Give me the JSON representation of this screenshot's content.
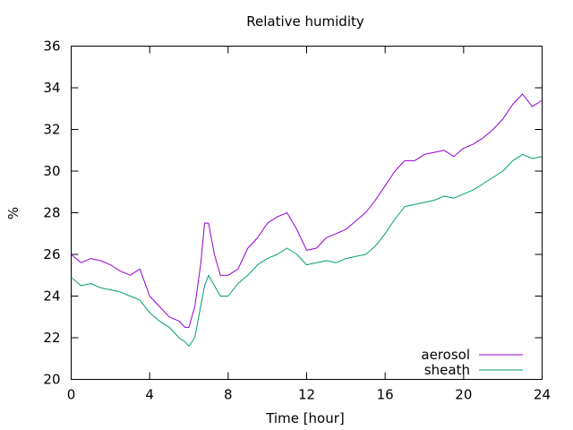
{
  "chart_data": {
    "type": "line",
    "title": "Relative humidity",
    "xlabel": "Time [hour]",
    "ylabel": "%",
    "xlim": [
      0,
      24
    ],
    "ylim": [
      20,
      36
    ],
    "xticks": [
      0,
      4,
      8,
      12,
      16,
      20,
      24
    ],
    "yticks": [
      20,
      22,
      24,
      26,
      28,
      30,
      32,
      34,
      36
    ],
    "grid": false,
    "legend_position": "bottom-right",
    "series": [
      {
        "name": "aerosol",
        "color": "#9400d3",
        "x": [
          0,
          0.5,
          1,
          1.5,
          2,
          2.5,
          3,
          3.5,
          4,
          4.5,
          5,
          5.5,
          5.8,
          6,
          6.3,
          6.6,
          6.8,
          7,
          7.3,
          7.6,
          8,
          8.5,
          9,
          9.5,
          10,
          10.5,
          11,
          11.5,
          12,
          12.5,
          13,
          13.5,
          14,
          14.5,
          15,
          15.5,
          16,
          16.5,
          17,
          17.5,
          18,
          18.5,
          19,
          19.5,
          20,
          20.5,
          21,
          21.5,
          22,
          22.5,
          23,
          23.5,
          24
        ],
        "y": [
          26.0,
          25.6,
          25.8,
          25.7,
          25.5,
          25.2,
          25.0,
          25.3,
          24.0,
          23.5,
          23.0,
          22.8,
          22.5,
          22.5,
          23.5,
          25.5,
          27.5,
          27.5,
          26.0,
          25.0,
          25.0,
          25.3,
          26.3,
          26.8,
          27.5,
          27.8,
          28.0,
          27.2,
          26.2,
          26.3,
          26.8,
          27.0,
          27.2,
          27.6,
          28.0,
          28.6,
          29.3,
          30.0,
          30.5,
          30.5,
          30.8,
          30.9,
          31.0,
          30.7,
          31.1,
          31.3,
          31.6,
          32.0,
          32.5,
          33.2,
          33.7,
          33.1,
          33.4
        ]
      },
      {
        "name": "sheath",
        "color": "#009e73",
        "x": [
          0,
          0.5,
          1,
          1.5,
          2,
          2.5,
          3,
          3.5,
          4,
          4.5,
          5,
          5.5,
          5.8,
          6,
          6.3,
          6.6,
          6.8,
          7,
          7.3,
          7.6,
          8,
          8.5,
          9,
          9.5,
          10,
          10.5,
          11,
          11.5,
          12,
          12.5,
          13,
          13.5,
          14,
          14.5,
          15,
          15.5,
          16,
          16.5,
          17,
          17.5,
          18,
          18.5,
          19,
          19.5,
          20,
          20.5,
          21,
          21.5,
          22,
          22.5,
          23,
          23.5,
          24
        ],
        "y": [
          24.9,
          24.5,
          24.6,
          24.4,
          24.3,
          24.2,
          24.0,
          23.8,
          23.2,
          22.8,
          22.5,
          22.0,
          21.8,
          21.6,
          22.0,
          23.5,
          24.5,
          25.0,
          24.5,
          24.0,
          24.0,
          24.6,
          25.0,
          25.5,
          25.8,
          26.0,
          26.3,
          26.0,
          25.5,
          25.6,
          25.7,
          25.6,
          25.8,
          25.9,
          26.0,
          26.4,
          27.0,
          27.7,
          28.3,
          28.4,
          28.5,
          28.6,
          28.8,
          28.7,
          28.9,
          29.1,
          29.4,
          29.7,
          30.0,
          30.5,
          30.8,
          30.6,
          30.7
        ]
      }
    ]
  }
}
